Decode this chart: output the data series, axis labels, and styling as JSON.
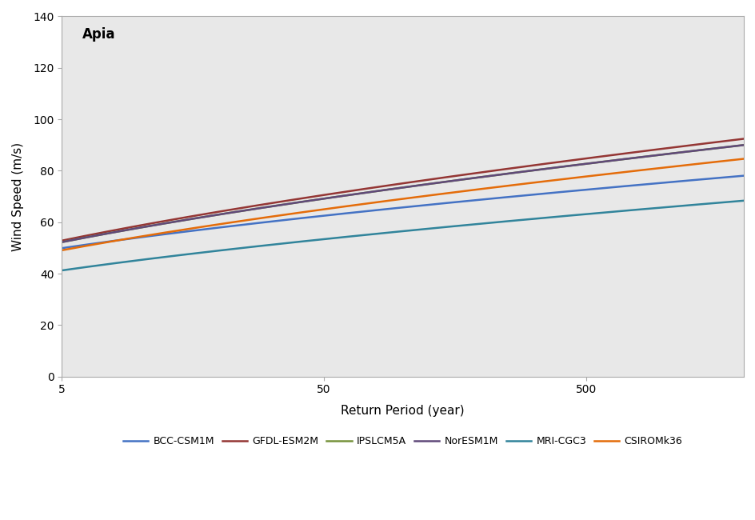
{
  "title": "Apia",
  "xlabel": "Return Period (year)",
  "ylabel": "Wind Speed (m/s)",
  "xlim": [
    5,
    2000
  ],
  "ylim": [
    0,
    140
  ],
  "yticks": [
    0,
    20,
    40,
    60,
    80,
    100,
    120,
    140
  ],
  "xticks": [
    5,
    50,
    500
  ],
  "background_color": "#e8e8e8",
  "fig_background": "#ffffff",
  "model_points": [
    {
      "name": "BCC-CSM1M",
      "color": "#4472c4",
      "v5": 48.5,
      "v10": 55.0,
      "v50": 63.0,
      "v100": 66.5,
      "v500": 73.0,
      "v2000": 77.0
    },
    {
      "name": "GFDL-ESM2M",
      "color": "#943634",
      "v5": 51.5,
      "v10": 59.5,
      "v50": 71.5,
      "v100": 75.5,
      "v500": 85.0,
      "v2000": 91.5
    },
    {
      "name": "IPSLCM5A",
      "color": "#76933c",
      "v5": 51.0,
      "v10": 58.5,
      "v50": 70.0,
      "v100": 74.0,
      "v500": 83.0,
      "v2000": 89.0
    },
    {
      "name": "NorESM1M",
      "color": "#60497a",
      "v5": 51.0,
      "v10": 58.5,
      "v50": 70.0,
      "v100": 74.0,
      "v500": 83.0,
      "v2000": 89.0
    },
    {
      "name": "MRI-CGC3",
      "color": "#31849b",
      "v5": 40.0,
      "v10": 45.5,
      "v50": 54.5,
      "v100": 57.5,
      "v500": 63.5,
      "v2000": 67.0
    },
    {
      "name": "CSIROMk36",
      "color": "#e46c0a",
      "v5": 47.5,
      "v10": 55.0,
      "v50": 66.0,
      "v100": 70.0,
      "v500": 78.5,
      "v2000": 83.0
    }
  ],
  "line_width": 1.8
}
